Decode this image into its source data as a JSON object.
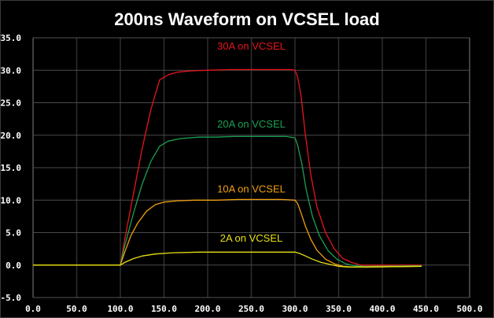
{
  "chart_data": {
    "type": "line",
    "title": "200ns Waveform on VCSEL load",
    "xlabel": "",
    "ylabel": "",
    "xlim": [
      0,
      500
    ],
    "ylim": [
      -5,
      35
    ],
    "xticks": [
      "0.0",
      "50.0",
      "100.0",
      "150.0",
      "200.0",
      "250.0",
      "300.0",
      "350.0",
      "400.0",
      "450.0",
      "500.0"
    ],
    "xtick_values": [
      0,
      50,
      100,
      150,
      200,
      250,
      300,
      350,
      400,
      450,
      500
    ],
    "yticks": [
      "35.0",
      "30.0",
      "25.0",
      "20.0",
      "15.0",
      "10.0",
      "5.0",
      "0.0",
      "-5.0"
    ],
    "ytick_values": [
      35,
      30,
      25,
      20,
      15,
      10,
      5,
      0,
      -5
    ],
    "grid": true,
    "series": [
      {
        "name": "30A on VCSEL",
        "color": "#e8141c",
        "label_at": [
          250,
          33.2
        ],
        "x": [
          0,
          100,
          105,
          115,
          125,
          135,
          145,
          155,
          165,
          180,
          200,
          225,
          250,
          275,
          295,
          300,
          303,
          307,
          312,
          318,
          325,
          335,
          345,
          355,
          365,
          375,
          380,
          400,
          445
        ],
        "y": [
          0,
          0,
          4,
          11,
          18,
          24,
          28.5,
          29.3,
          29.7,
          29.9,
          30.0,
          30.1,
          30.1,
          30.1,
          30.1,
          30.0,
          29,
          26,
          20,
          14,
          9,
          5,
          2.5,
          1,
          0.4,
          0,
          0,
          0,
          0
        ]
      },
      {
        "name": "20A on VCSEL",
        "color": "#1aa052",
        "label_at": [
          250,
          21.2
        ],
        "x": [
          0,
          100,
          105,
          115,
          125,
          135,
          145,
          155,
          170,
          190,
          210,
          230,
          250,
          270,
          290,
          300,
          303,
          308,
          313,
          320,
          328,
          338,
          348,
          358,
          368,
          380,
          445
        ],
        "y": [
          0,
          0,
          3,
          8,
          12.5,
          16,
          18.3,
          19.1,
          19.5,
          19.7,
          19.7,
          19.8,
          19.8,
          19.8,
          19.8,
          19.6,
          18.5,
          15.5,
          11.5,
          7.5,
          4.5,
          2.2,
          0.9,
          0.2,
          -0.1,
          -0.2,
          -0.1
        ]
      },
      {
        "name": "10A on VCSEL",
        "color": "#f0a010",
        "label_at": [
          250,
          11.2
        ],
        "x": [
          0,
          100,
          105,
          112,
          120,
          130,
          140,
          150,
          165,
          185,
          210,
          235,
          260,
          285,
          300,
          303,
          307,
          312,
          318,
          325,
          335,
          345,
          355,
          365,
          380,
          445
        ],
        "y": [
          0,
          0,
          2,
          4.5,
          6.5,
          8.3,
          9.3,
          9.7,
          9.9,
          10.0,
          10.0,
          10.1,
          10.1,
          10.1,
          10.0,
          9.5,
          8,
          6,
          4,
          2.3,
          0.9,
          0.2,
          -0.2,
          -0.3,
          -0.3,
          -0.2
        ]
      },
      {
        "name": "2A on VCSEL",
        "color": "#e6e012",
        "label_at": [
          250,
          3.6
        ],
        "x": [
          0,
          100,
          105,
          115,
          125,
          140,
          160,
          190,
          230,
          270,
          300,
          305,
          312,
          320,
          330,
          340,
          350,
          360,
          380,
          445
        ],
        "y": [
          0,
          0,
          0.4,
          1.0,
          1.4,
          1.7,
          1.9,
          2.0,
          2.0,
          2.0,
          2.0,
          1.8,
          1.4,
          0.9,
          0.4,
          0.1,
          -0.2,
          -0.3,
          -0.3,
          -0.2
        ]
      }
    ]
  }
}
